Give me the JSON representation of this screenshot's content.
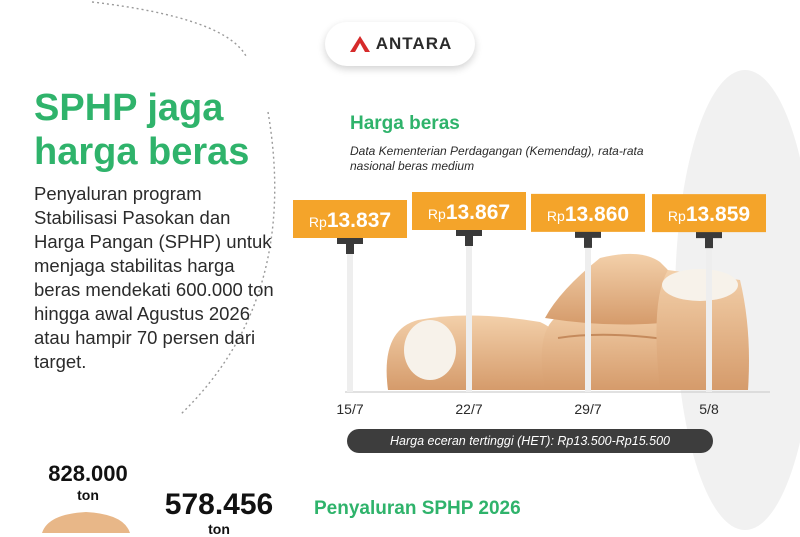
{
  "brand": {
    "logo_text": "ANTARA"
  },
  "headline": "SPHP jaga harga beras",
  "intro_text": "Penyaluran program Stabilisasi Pasokan dan Harga Pangan (SPHP) untuk menjaga stabilitas harga beras mendekati 600.000 ton hingga awal Agustus 2026 atau hampir 70 persen dari target.",
  "chart_data": {
    "type": "bar",
    "title": "Harga beras",
    "subtitle": "Data Kementerian Perdagangan (Kemendag), rata-rata nasional beras medium",
    "categories": [
      "15/7",
      "22/7",
      "29/7",
      "5/8"
    ],
    "values": [
      13837,
      13867,
      13860,
      13859
    ],
    "value_labels": [
      "13.837",
      "13.867",
      "13.860",
      "13.859"
    ],
    "value_prefix": "Rp",
    "xlabel": "",
    "ylabel": "",
    "grid": false,
    "colors": {
      "label_box": "#f4a42a",
      "stem": "#3a3a3a",
      "pole": "#eeeeee"
    }
  },
  "het_label": "Harga eceran tertinggi (HET): Rp13.500-Rp15.500",
  "stock": {
    "value": "828.000",
    "unit": "ton"
  },
  "distribution": {
    "value": "578.456",
    "unit": "ton"
  },
  "section_title": "Penyaluran SPHP 2026",
  "colors": {
    "accent_green": "#2fb36b",
    "accent_orange": "#f4a42a",
    "dark": "#3d3d3d"
  }
}
